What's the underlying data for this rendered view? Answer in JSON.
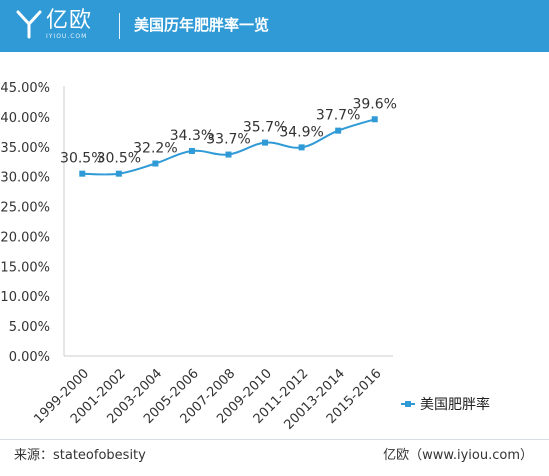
{
  "header": {
    "brand_name": "亿欧",
    "brand_sub": "IYIOU.COM",
    "title": "美国历年肥胖率一览",
    "background_color": "#2f9ad6"
  },
  "chart_data": {
    "type": "line",
    "title": "",
    "xlabel": "",
    "ylabel": "",
    "categories": [
      "1999-2000",
      "2001-2002",
      "2003-2004",
      "2005-2006",
      "2007-2008",
      "2009-2010",
      "2011-2012",
      "20013-2014",
      "2015-2016"
    ],
    "series": [
      {
        "name": "美国肥胖率",
        "values": [
          30.5,
          30.5,
          32.2,
          34.3,
          33.7,
          35.7,
          34.9,
          37.7,
          39.6
        ],
        "data_labels": [
          "30.5%",
          "30.5%",
          "32.2%",
          "34.3%",
          "33.7%",
          "35.7%",
          "34.9%",
          "37.7%",
          "39.6%"
        ],
        "color": "#2f9ad6"
      }
    ],
    "ylim": [
      0,
      45
    ],
    "yticks": [
      0,
      5,
      10,
      15,
      20,
      25,
      30,
      35,
      40,
      45
    ],
    "ytick_labels": [
      "0.00%",
      "5.00%",
      "10.00%",
      "15.00%",
      "20.00%",
      "25.00%",
      "30.00%",
      "35.00%",
      "40.00%",
      "45.00%"
    ],
    "grid": false,
    "legend_position": "right",
    "smooth": true
  },
  "footer": {
    "source": "来源：stateofobesity",
    "site": "亿欧（www.iyiou.com）"
  }
}
